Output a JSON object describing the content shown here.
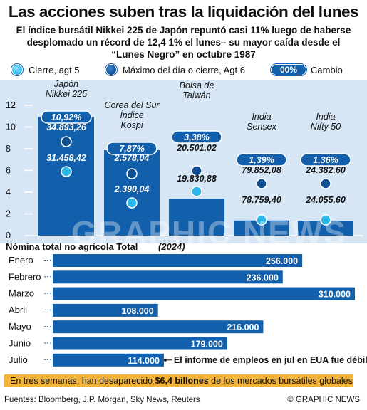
{
  "title": "Las acciones suben tras la liquidación del lunes",
  "subtitle_lines": [
    "El índice bursátil Nikkei 225 de Japón repuntó casi 11% luego de haberse",
    "desplomado un récord de 12,4 1% el lunes– su mayor caída desde el",
    "“Lunes Negro” en octubre 1987"
  ],
  "legend": {
    "close": "Cierre, agt 5",
    "high": "Máximo del día o cierre, Agt 6",
    "change_pill": "00%",
    "change": "Cambio"
  },
  "colors": {
    "bar": "#1260ab",
    "panel": "#d6e6f5",
    "highlight": "#f2b33b"
  },
  "chart_data": [
    {
      "type": "bar",
      "yticks": [
        "12",
        "10",
        "8",
        "6",
        "4",
        "2",
        "0"
      ],
      "ylim": [
        0,
        12
      ],
      "categories": [
        {
          "name_lines": [
            "Japón",
            "Nikkei 225"
          ],
          "value": 10.92,
          "change": "10,92%",
          "high": "34.893,26",
          "close": "31.458,42"
        },
        {
          "name_lines": [
            "Corea del Sur",
            "Índice",
            "Kospi"
          ],
          "value": 7.87,
          "change": "7,87%",
          "high": "2.578,04",
          "close": "2.390,04"
        },
        {
          "name_lines": [
            "Bolsa de",
            "Taiwán"
          ],
          "value": 3.38,
          "change": "3,38%",
          "high": "20.501,02",
          "close": "19.830,88"
        },
        {
          "name_lines": [
            "India",
            "Sensex"
          ],
          "value": 1.39,
          "change": "1,39%",
          "high": "79.852,08",
          "close": "78.759,40"
        },
        {
          "name_lines": [
            "India",
            "Nifty 50"
          ],
          "value": 1.36,
          "change": "1,36%",
          "high": "24.382,60",
          "close": "24.055,60"
        }
      ]
    },
    {
      "type": "bar",
      "orientation": "horizontal",
      "title": "Nómina total no agrícola Total",
      "title_suffix": "(2024)",
      "categories": [
        "Enero",
        "Febrero",
        "Marzo",
        "Abril",
        "Mayo",
        "Junio",
        "Julio"
      ],
      "values": [
        256000,
        236000,
        310000,
        108000,
        216000,
        179000,
        114000
      ],
      "labels": [
        "256.000",
        "236.000",
        "310.000",
        "108.000",
        "216.000",
        "179.000",
        "114.000"
      ],
      "annotation": "El informe de empleos en jul en EUA fue débil"
    }
  ],
  "footer_note": {
    "pre": "En tres semanas, han desaparecido ",
    "bold": "$6,4 billones",
    "post": " de los mercados bursátiles globales"
  },
  "sources": "Fuentes: Bloomberg, J.P. Morgan, Sky News, Reuters",
  "copyright": "© GRAPHIC NEWS"
}
